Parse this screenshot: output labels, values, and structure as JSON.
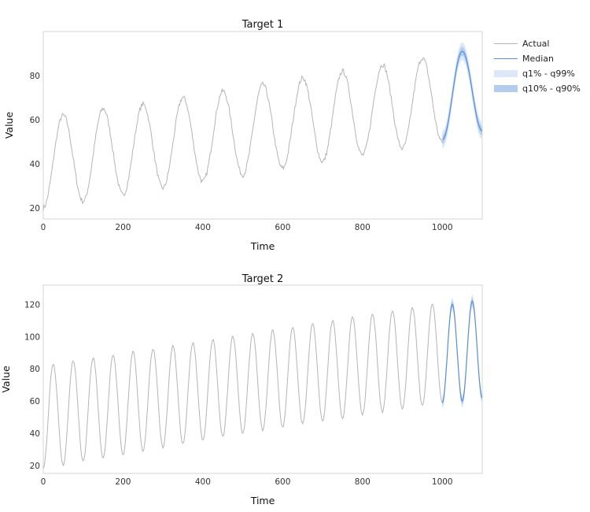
{
  "colors": {
    "actual": "#b4b4b4",
    "median": "#5b8fd4",
    "band_outer": "#dce8f7",
    "band_inner": "#b5cdec",
    "frame": "#d6d6d6"
  },
  "legend": {
    "placement": "top-right",
    "entries": [
      {
        "label": "Actual",
        "kind": "line",
        "color": "#b4b4b4"
      },
      {
        "label": "Median",
        "kind": "line",
        "color": "#5b8fd4"
      },
      {
        "label": "q1% - q99%",
        "kind": "band",
        "color": "#dce8f7"
      },
      {
        "label": "q10% - q90%",
        "kind": "band",
        "color": "#b5cdec"
      }
    ]
  },
  "chart_data": [
    {
      "type": "line",
      "title": "Target 1",
      "xlabel": "Time",
      "ylabel": "Value",
      "xlim": [
        0,
        1100
      ],
      "ylim": [
        15,
        100
      ],
      "xticks": [
        0,
        200,
        400,
        600,
        800,
        1000
      ],
      "yticks": [
        20,
        40,
        60,
        80
      ],
      "grid": false,
      "series": [
        {
          "name": "Actual",
          "x_range": [
            0,
            1000
          ],
          "period": 100,
          "troughs": [
            {
              "x": 0,
              "y": 20
            },
            {
              "x": 100,
              "y": 23
            },
            {
              "x": 200,
              "y": 26
            },
            {
              "x": 300,
              "y": 29
            },
            {
              "x": 400,
              "y": 32
            },
            {
              "x": 500,
              "y": 35
            },
            {
              "x": 600,
              "y": 38
            },
            {
              "x": 700,
              "y": 41
            },
            {
              "x": 800,
              "y": 44
            },
            {
              "x": 900,
              "y": 47
            },
            {
              "x": 1000,
              "y": 50
            }
          ],
          "peaks": [
            {
              "x": 50,
              "y": 62
            },
            {
              "x": 150,
              "y": 65
            },
            {
              "x": 250,
              "y": 67
            },
            {
              "x": 350,
              "y": 70
            },
            {
              "x": 450,
              "y": 73
            },
            {
              "x": 550,
              "y": 76
            },
            {
              "x": 650,
              "y": 79
            },
            {
              "x": 750,
              "y": 82
            },
            {
              "x": 850,
              "y": 85
            },
            {
              "x": 950,
              "y": 88
            }
          ]
        },
        {
          "name": "Median",
          "x_range": [
            1000,
            1100
          ],
          "points": [
            {
              "x": 1000,
              "y": 51
            },
            {
              "x": 1050,
              "y": 91
            },
            {
              "x": 1100,
              "y": 55
            }
          ]
        },
        {
          "name": "q1% - q99%",
          "x_range": [
            1000,
            1100
          ],
          "half_width": 4
        },
        {
          "name": "q10% - q90%",
          "x_range": [
            1000,
            1100
          ],
          "half_width": 2
        }
      ]
    },
    {
      "type": "line",
      "title": "Target 2",
      "xlabel": "Time",
      "ylabel": "Value",
      "xlim": [
        0,
        1100
      ],
      "ylim": [
        15,
        132
      ],
      "xticks": [
        0,
        200,
        400,
        600,
        800,
        1000
      ],
      "yticks": [
        20,
        40,
        60,
        80,
        100,
        120
      ],
      "grid": false,
      "series": [
        {
          "name": "Actual",
          "x_range": [
            0,
            1000
          ],
          "period": 50,
          "troughs": [
            {
              "x": 0,
              "y": 18
            },
            {
              "x": 500,
              "y": 40
            },
            {
              "x": 1000,
              "y": 59
            }
          ],
          "peaks": [
            {
              "x": 25,
              "y": 83
            },
            {
              "x": 525,
              "y": 102
            },
            {
              "x": 975,
              "y": 120
            }
          ]
        },
        {
          "name": "Median",
          "x_range": [
            1000,
            1100
          ],
          "period": 50,
          "troughs": [
            {
              "x": 1000,
              "y": 59
            },
            {
              "x": 1050,
              "y": 60
            },
            {
              "x": 1100,
              "y": 62
            }
          ],
          "peaks": [
            {
              "x": 1025,
              "y": 120
            },
            {
              "x": 1075,
              "y": 122
            }
          ]
        },
        {
          "name": "q1% - q99%",
          "x_range": [
            1000,
            1100
          ],
          "half_width": 4
        },
        {
          "name": "q10% - q90%",
          "x_range": [
            1000,
            1100
          ],
          "half_width": 2
        }
      ]
    }
  ]
}
